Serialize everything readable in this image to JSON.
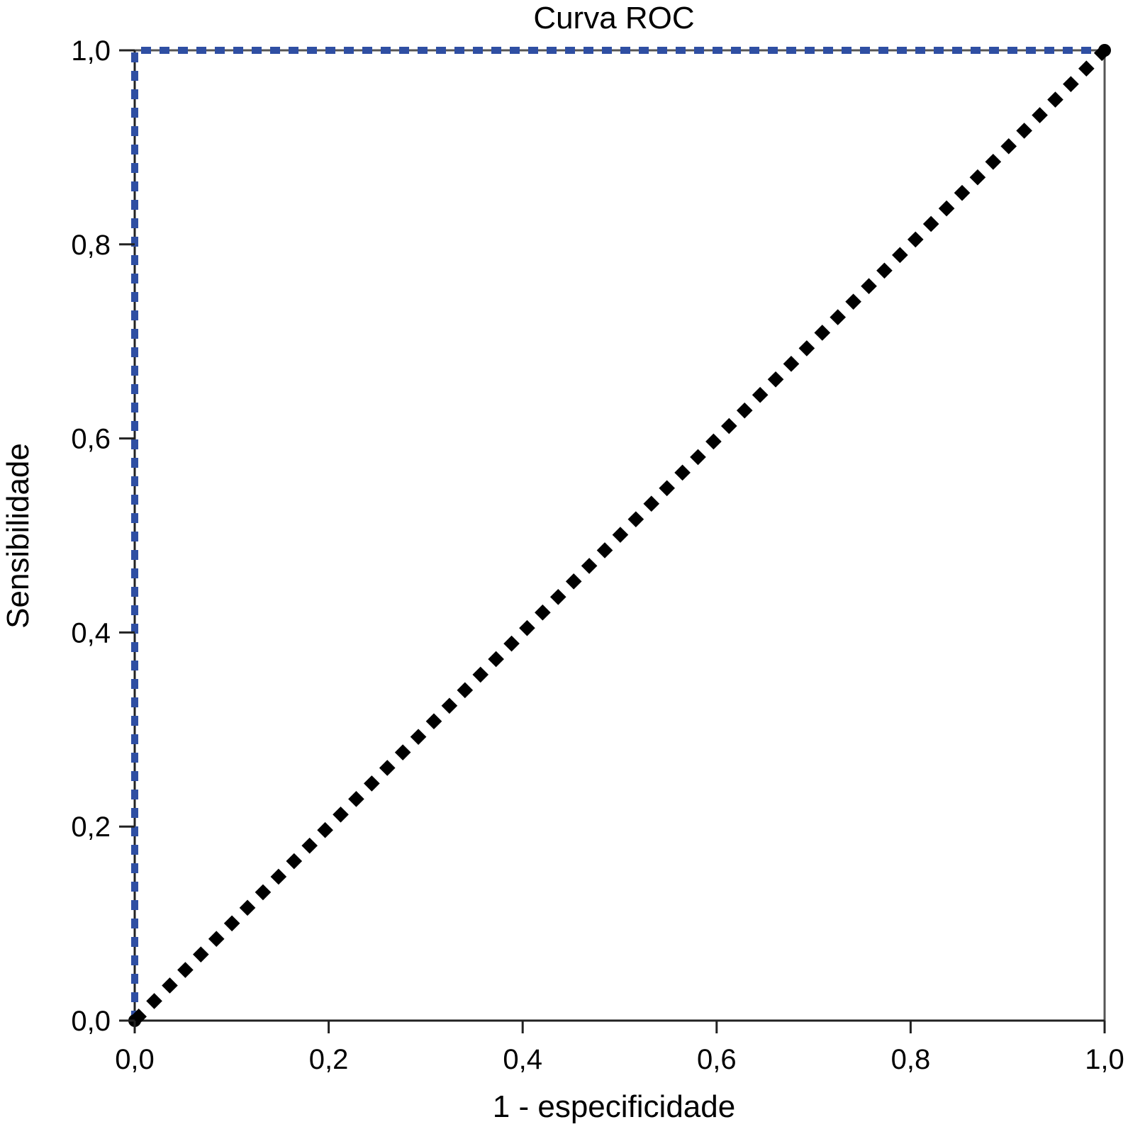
{
  "chart_data": {
    "type": "line",
    "title": "Curva ROC",
    "xlabel": "1 - especificidade",
    "ylabel": "Sensibilidade",
    "xlim": [
      0,
      1
    ],
    "ylim": [
      0,
      1
    ],
    "x_ticks": [
      "0,0",
      "0,2",
      "0,4",
      "0,6",
      "0,8",
      "1,0"
    ],
    "y_ticks": [
      "0,0",
      "0,2",
      "0,4",
      "0,6",
      "0,8",
      "1,0"
    ],
    "grid": false,
    "series": [
      {
        "color": "#2f4fa3",
        "style": "dashed",
        "x": [
          0,
          0,
          1
        ],
        "y": [
          0,
          1,
          1
        ]
      },
      {
        "color": "#000000",
        "style": "dotted",
        "x": [
          0,
          1
        ],
        "y": [
          0,
          1
        ]
      }
    ]
  }
}
